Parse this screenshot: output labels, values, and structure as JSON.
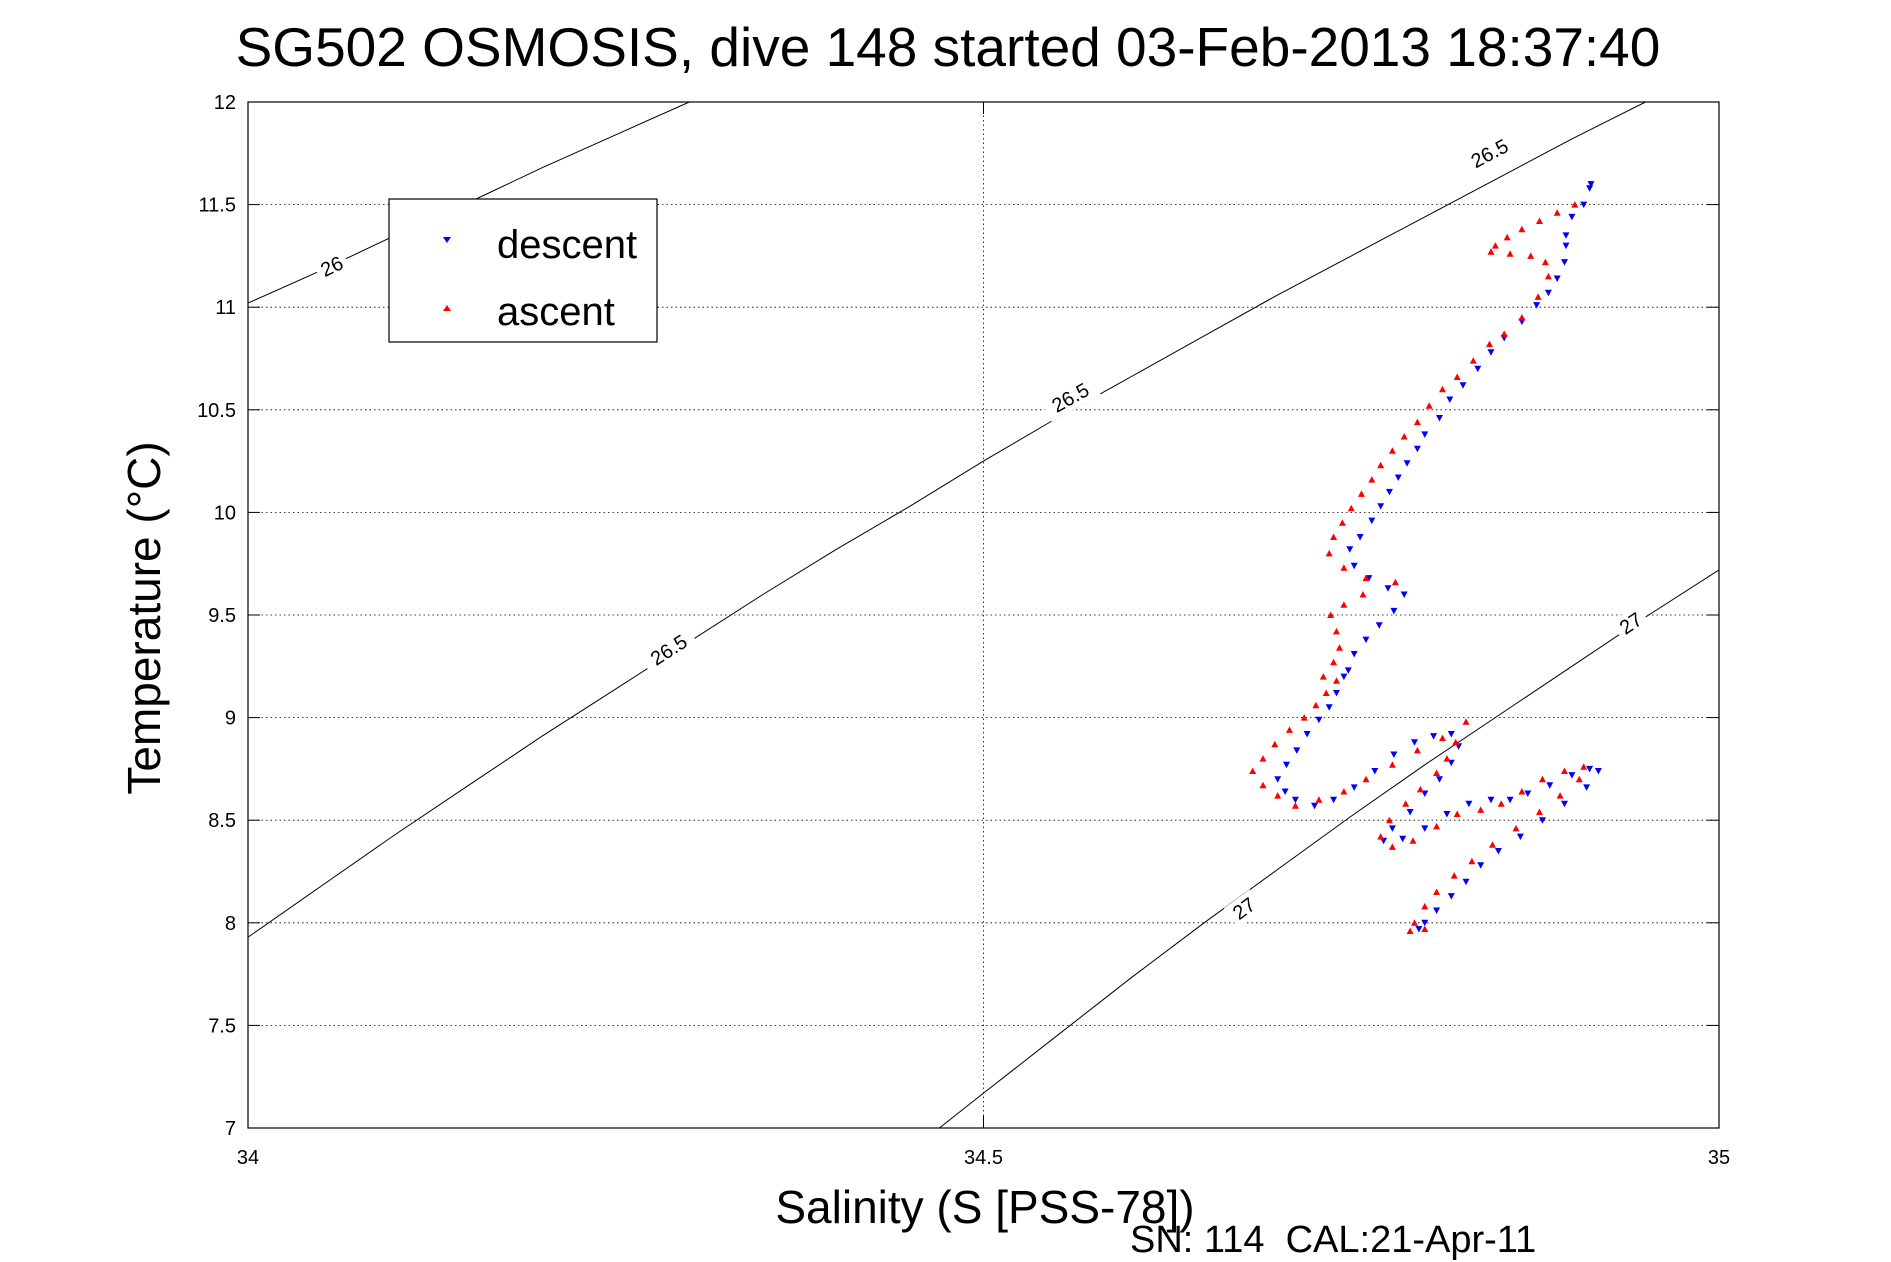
{
  "chart_data": {
    "type": "scatter",
    "title": "SG502 OSMOSIS, dive 148 started 03-Feb-2013 18:37:40",
    "xlabel": "Salinity (S [PSS-78])",
    "ylabel": "Temperature (°C)",
    "footer": "SN: 114  CAL:21-Apr-11",
    "xlim": [
      34,
      35
    ],
    "ylim": [
      7,
      12
    ],
    "xticks": [
      34,
      34.5,
      35
    ],
    "xtick_labels": [
      "34",
      "34.5",
      "35"
    ],
    "yticks": [
      7,
      7.5,
      8,
      8.5,
      9,
      9.5,
      10,
      10.5,
      11,
      11.5,
      12
    ],
    "ytick_labels": [
      "7",
      "7.5",
      "8",
      "8.5",
      "9",
      "9.5",
      "10",
      "10.5",
      "11",
      "11.5",
      "12"
    ],
    "grid": true,
    "legend_position": "top-left",
    "series": [
      {
        "name": "descent",
        "color": "#0000ff",
        "marker": "triangle-down",
        "points": [
          [
            34.913,
            11.6
          ],
          [
            34.912,
            11.58
          ],
          [
            34.908,
            11.5
          ],
          [
            34.9,
            11.44
          ],
          [
            34.896,
            11.35
          ],
          [
            34.896,
            11.3
          ],
          [
            34.895,
            11.22
          ],
          [
            34.89,
            11.14
          ],
          [
            34.884,
            11.07
          ],
          [
            34.876,
            11.01
          ],
          [
            34.866,
            10.93
          ],
          [
            34.854,
            10.85
          ],
          [
            34.845,
            10.78
          ],
          [
            34.836,
            10.7
          ],
          [
            34.826,
            10.62
          ],
          [
            34.817,
            10.55
          ],
          [
            34.81,
            10.46
          ],
          [
            34.8,
            10.38
          ],
          [
            34.795,
            10.31
          ],
          [
            34.788,
            10.24
          ],
          [
            34.782,
            10.17
          ],
          [
            34.776,
            10.1
          ],
          [
            34.77,
            10.03
          ],
          [
            34.764,
            9.96
          ],
          [
            34.756,
            9.88
          ],
          [
            34.749,
            9.82
          ],
          [
            34.752,
            9.74
          ],
          [
            34.762,
            9.68
          ],
          [
            34.775,
            9.63
          ],
          [
            34.786,
            9.6
          ],
          [
            34.779,
            9.52
          ],
          [
            34.769,
            9.45
          ],
          [
            34.76,
            9.38
          ],
          [
            34.752,
            9.31
          ],
          [
            34.748,
            9.23
          ],
          [
            34.745,
            9.2
          ],
          [
            34.74,
            9.12
          ],
          [
            34.735,
            9.05
          ],
          [
            34.728,
            8.99
          ],
          [
            34.72,
            8.92
          ],
          [
            34.713,
            8.84
          ],
          [
            34.706,
            8.77
          ],
          [
            34.7,
            8.7
          ],
          [
            34.705,
            8.64
          ],
          [
            34.712,
            8.6
          ],
          [
            34.725,
            8.57
          ],
          [
            34.738,
            8.6
          ],
          [
            34.752,
            8.66
          ],
          [
            34.766,
            8.74
          ],
          [
            34.779,
            8.82
          ],
          [
            34.793,
            8.88
          ],
          [
            34.806,
            8.91
          ],
          [
            34.818,
            8.92
          ],
          [
            34.823,
            8.86
          ],
          [
            34.818,
            8.78
          ],
          [
            34.81,
            8.7
          ],
          [
            34.8,
            8.63
          ],
          [
            34.79,
            8.54
          ],
          [
            34.778,
            8.46
          ],
          [
            34.772,
            8.4
          ],
          [
            34.785,
            8.41
          ],
          [
            34.8,
            8.46
          ],
          [
            34.815,
            8.53
          ],
          [
            34.83,
            8.58
          ],
          [
            34.845,
            8.6
          ],
          [
            34.858,
            8.6
          ],
          [
            34.87,
            8.63
          ],
          [
            34.885,
            8.67
          ],
          [
            34.9,
            8.72
          ],
          [
            34.912,
            8.75
          ],
          [
            34.918,
            8.74
          ],
          [
            34.91,
            8.66
          ],
          [
            34.895,
            8.58
          ],
          [
            34.88,
            8.5
          ],
          [
            34.865,
            8.42
          ],
          [
            34.85,
            8.35
          ],
          [
            34.838,
            8.28
          ],
          [
            34.828,
            8.2
          ],
          [
            34.818,
            8.13
          ],
          [
            34.808,
            8.06
          ],
          [
            34.8,
            8.0
          ],
          [
            34.796,
            7.97
          ]
        ]
      },
      {
        "name": "ascent",
        "color": "#ff0000",
        "marker": "triangle-up",
        "points": [
          [
            34.902,
            11.5
          ],
          [
            34.89,
            11.46
          ],
          [
            34.878,
            11.42
          ],
          [
            34.866,
            11.38
          ],
          [
            34.856,
            11.34
          ],
          [
            34.848,
            11.3
          ],
          [
            34.845,
            11.27
          ],
          [
            34.858,
            11.26
          ],
          [
            34.872,
            11.25
          ],
          [
            34.882,
            11.22
          ],
          [
            34.884,
            11.15
          ],
          [
            34.877,
            11.05
          ],
          [
            34.866,
            10.95
          ],
          [
            34.854,
            10.87
          ],
          [
            34.844,
            10.82
          ],
          [
            34.833,
            10.74
          ],
          [
            34.822,
            10.66
          ],
          [
            34.812,
            10.6
          ],
          [
            34.803,
            10.52
          ],
          [
            34.795,
            10.44
          ],
          [
            34.786,
            10.37
          ],
          [
            34.778,
            10.3
          ],
          [
            34.77,
            10.23
          ],
          [
            34.764,
            10.16
          ],
          [
            34.757,
            10.09
          ],
          [
            34.75,
            10.02
          ],
          [
            34.744,
            9.95
          ],
          [
            34.738,
            9.88
          ],
          [
            34.735,
            9.8
          ],
          [
            34.745,
            9.73
          ],
          [
            34.76,
            9.68
          ],
          [
            34.78,
            9.66
          ],
          [
            34.758,
            9.6
          ],
          [
            34.745,
            9.55
          ],
          [
            34.736,
            9.5
          ],
          [
            34.74,
            9.42
          ],
          [
            34.742,
            9.34
          ],
          [
            34.738,
            9.27
          ],
          [
            34.731,
            9.2
          ],
          [
            34.74,
            9.18
          ],
          [
            34.733,
            9.12
          ],
          [
            34.726,
            9.06
          ],
          [
            34.718,
            9.0
          ],
          [
            34.708,
            8.94
          ],
          [
            34.698,
            8.87
          ],
          [
            34.69,
            8.8
          ],
          [
            34.683,
            8.74
          ],
          [
            34.69,
            8.67
          ],
          [
            34.7,
            8.62
          ],
          [
            34.712,
            8.57
          ],
          [
            34.728,
            8.6
          ],
          [
            34.745,
            8.64
          ],
          [
            34.76,
            8.7
          ],
          [
            34.778,
            8.77
          ],
          [
            34.795,
            8.84
          ],
          [
            34.812,
            8.9
          ],
          [
            34.828,
            8.98
          ],
          [
            34.821,
            8.88
          ],
          [
            34.815,
            8.8
          ],
          [
            34.808,
            8.73
          ],
          [
            34.797,
            8.65
          ],
          [
            34.787,
            8.58
          ],
          [
            34.776,
            8.5
          ],
          [
            34.77,
            8.42
          ],
          [
            34.778,
            8.37
          ],
          [
            34.792,
            8.4
          ],
          [
            34.808,
            8.47
          ],
          [
            34.822,
            8.53
          ],
          [
            34.838,
            8.55
          ],
          [
            34.852,
            8.58
          ],
          [
            34.866,
            8.64
          ],
          [
            34.88,
            8.7
          ],
          [
            34.895,
            8.74
          ],
          [
            34.908,
            8.76
          ],
          [
            34.905,
            8.7
          ],
          [
            34.892,
            8.62
          ],
          [
            34.878,
            8.54
          ],
          [
            34.862,
            8.46
          ],
          [
            34.846,
            8.38
          ],
          [
            34.832,
            8.3
          ],
          [
            34.82,
            8.23
          ],
          [
            34.808,
            8.15
          ],
          [
            34.8,
            8.08
          ],
          [
            34.793,
            8.0
          ],
          [
            34.79,
            7.96
          ],
          [
            34.8,
            7.97
          ]
        ]
      }
    ],
    "contours": [
      {
        "label": "26",
        "label_positions": [
          [
            34.057,
            11.2
          ]
        ],
        "points": [
          [
            34.0,
            11.02
          ],
          [
            34.05,
            11.18
          ],
          [
            34.1,
            11.35
          ],
          [
            34.15,
            11.51
          ],
          [
            34.2,
            11.68
          ],
          [
            34.25,
            11.84
          ],
          [
            34.3,
            12.0
          ]
        ]
      },
      {
        "label": "26.5",
        "label_positions": [
          [
            34.286,
            9.33
          ],
          [
            34.559,
            10.56
          ],
          [
            34.844,
            11.75
          ]
        ],
        "points": [
          [
            34.0,
            7.93
          ],
          [
            34.05,
            8.18
          ],
          [
            34.1,
            8.43
          ],
          [
            34.15,
            8.67
          ],
          [
            34.2,
            8.91
          ],
          [
            34.25,
            9.14
          ],
          [
            34.3,
            9.37
          ],
          [
            34.35,
            9.6
          ],
          [
            34.4,
            9.82
          ],
          [
            34.45,
            10.03
          ],
          [
            34.5,
            10.25
          ],
          [
            34.55,
            10.46
          ],
          [
            34.6,
            10.66
          ],
          [
            34.65,
            10.86
          ],
          [
            34.7,
            11.06
          ],
          [
            34.75,
            11.25
          ],
          [
            34.8,
            11.44
          ],
          [
            34.85,
            11.63
          ],
          [
            34.9,
            11.82
          ],
          [
            34.95,
            12.0
          ]
        ]
      },
      {
        "label": "27",
        "label_positions": [
          [
            34.677,
            8.07
          ],
          [
            34.94,
            9.46
          ]
        ],
        "points": [
          [
            34.47,
            7.0
          ],
          [
            34.5,
            7.17
          ],
          [
            34.55,
            7.45
          ],
          [
            34.6,
            7.73
          ],
          [
            34.65,
            8.0
          ],
          [
            34.7,
            8.26
          ],
          [
            34.75,
            8.52
          ],
          [
            34.8,
            8.77
          ],
          [
            34.85,
            9.01
          ],
          [
            34.9,
            9.25
          ],
          [
            34.95,
            9.49
          ],
          [
            35.0,
            9.72
          ]
        ]
      }
    ]
  }
}
